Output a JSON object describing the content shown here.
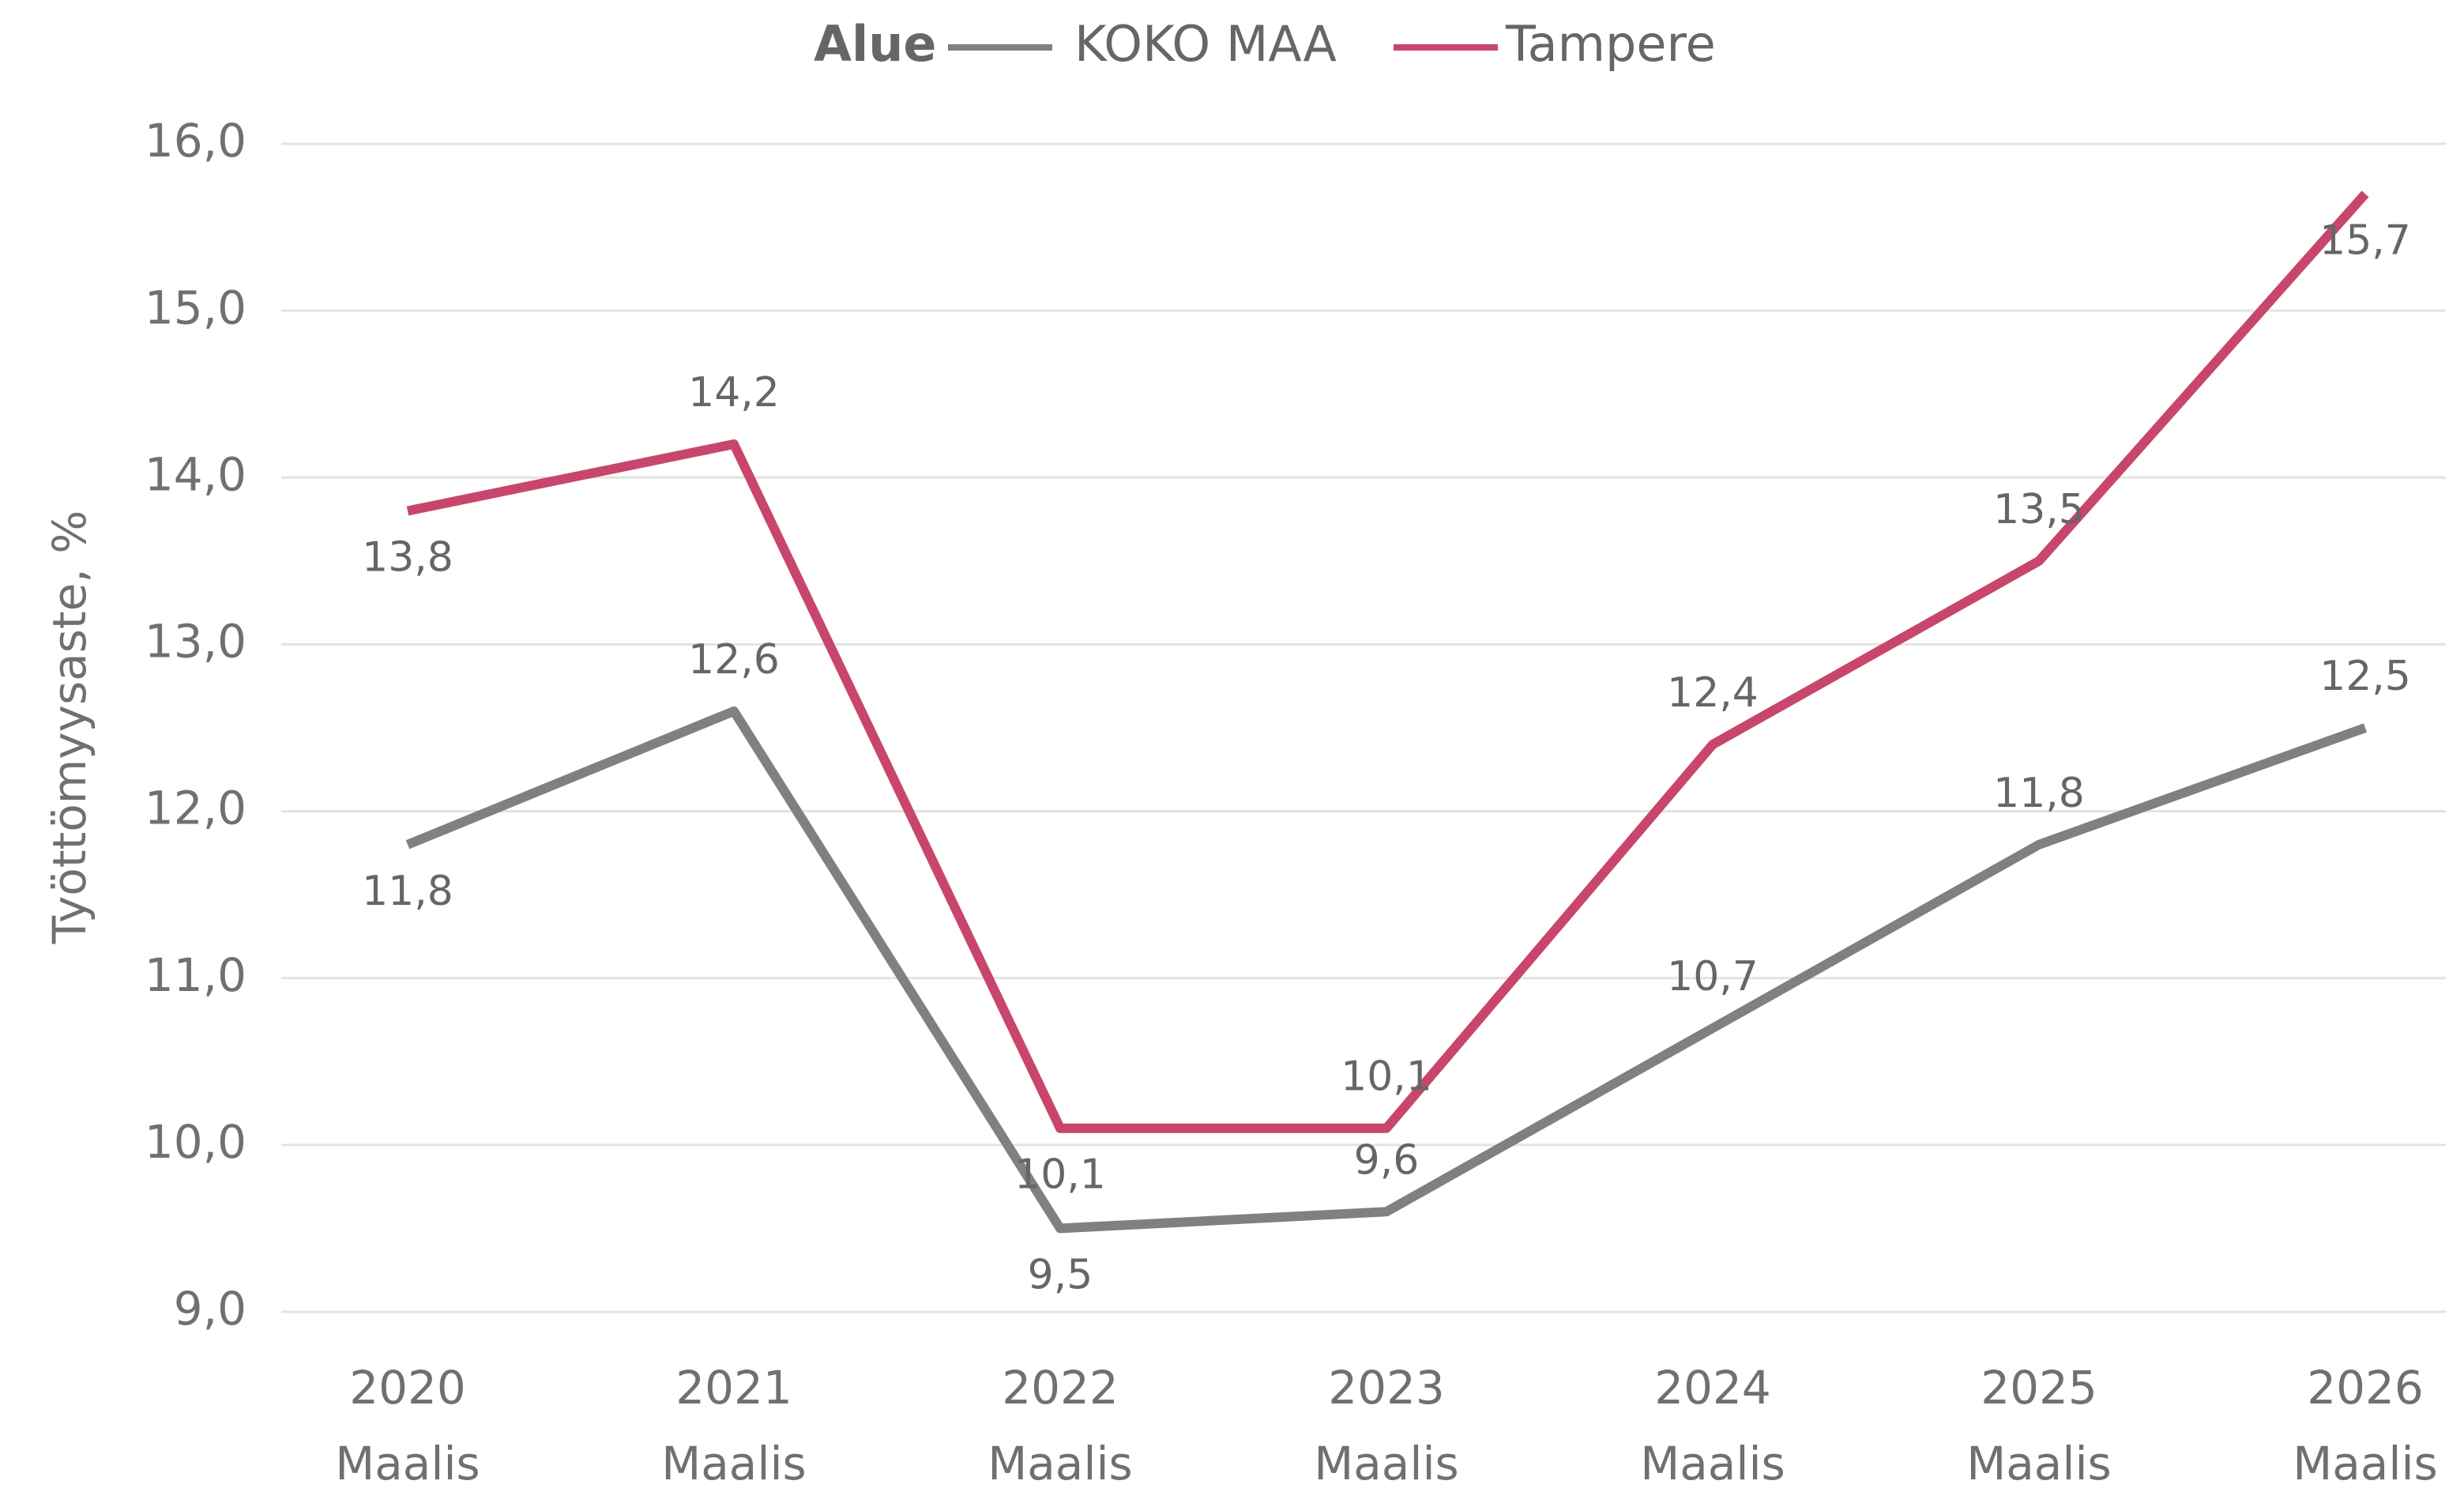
{
  "chart_data": {
    "type": "line",
    "legend_title": "Alue",
    "y_label": "Työttömyysaste, %",
    "categories": [
      [
        "2020",
        "Maalis"
      ],
      [
        "2021",
        "Maalis"
      ],
      [
        "2022",
        "Maalis"
      ],
      [
        "2023",
        "Maalis"
      ],
      [
        "2024",
        "Maalis"
      ],
      [
        "2025",
        "Maalis"
      ],
      [
        "2026",
        "Maalis"
      ]
    ],
    "series": [
      {
        "name": "KOKO MAA",
        "color": "#808080",
        "values": [
          11.8,
          12.6,
          9.5,
          9.6,
          10.7,
          11.8,
          12.5
        ],
        "value_labels": [
          "11,8",
          "12,6",
          "9,5",
          "9,6",
          "10,7",
          "11,8",
          "12,5"
        ]
      },
      {
        "name": "Tampere",
        "color": "#c8466b",
        "values": [
          13.8,
          14.2,
          10.1,
          10.1,
          12.4,
          13.5,
          15.7
        ],
        "value_labels": [
          "13,8",
          "14,2",
          "10,1",
          "10,1",
          "12,4",
          "13,5",
          "15,7"
        ]
      }
    ],
    "ylim": [
      9,
      16
    ],
    "yticks": [
      {
        "value": 9,
        "label": "9,0"
      },
      {
        "value": 10,
        "label": "10,0"
      },
      {
        "value": 11,
        "label": "11,0"
      },
      {
        "value": 12,
        "label": "12,0"
      },
      {
        "value": 13,
        "label": "13,0"
      },
      {
        "value": 14,
        "label": "14,0"
      },
      {
        "value": 15,
        "label": "15,0"
      },
      {
        "value": 16,
        "label": "16,0"
      }
    ],
    "grid": true,
    "legend": "top"
  }
}
